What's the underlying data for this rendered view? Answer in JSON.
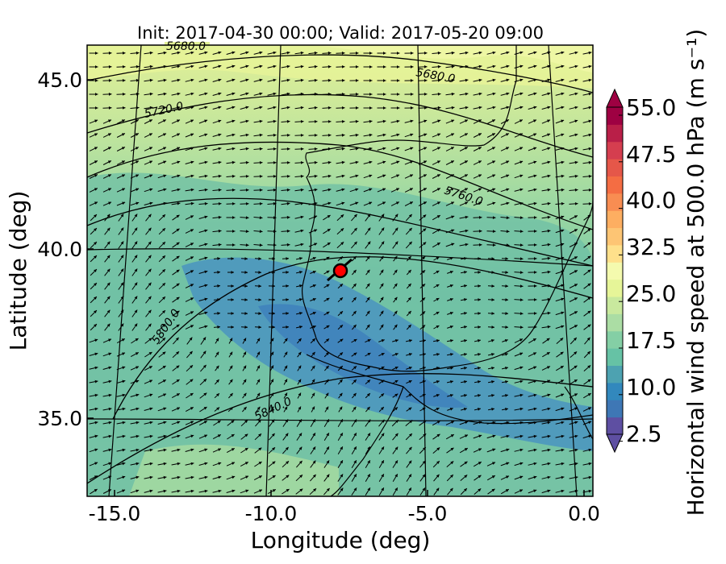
{
  "title": "Init: 2017-04-30 00:00; Valid: 2017-05-20 09:00",
  "xlabel": "Longitude (deg)",
  "ylabel": "Latitude (deg)",
  "colorbar_label": "Horizontal wind speed at 500.0 hPa (m s⁻¹)",
  "x_ticks": [
    "-15.0",
    "-10.0",
    "-5.0",
    "0.0"
  ],
  "y_ticks": [
    "45.0",
    "40.0",
    "35.0"
  ],
  "colorbar_ticks": [
    "55.0",
    "47.5",
    "40.0",
    "32.5",
    "25.0",
    "17.5",
    "10.0",
    "2.5"
  ],
  "contour_labels": [
    "5680.0",
    "5680.0",
    "5720.0",
    "5760.0",
    "5800.0",
    "5840.0"
  ],
  "marker": {
    "lon": -7.6,
    "lat": 39.3,
    "color": "#ff0000"
  },
  "map_data": {
    "type": "filled-contour-with-vectors",
    "xlim": [
      -15.8,
      0.3
    ],
    "ylim": [
      32.7,
      46.0
    ],
    "colormap": "Spectral_r",
    "levels": [
      2.5,
      55.0
    ]
  }
}
